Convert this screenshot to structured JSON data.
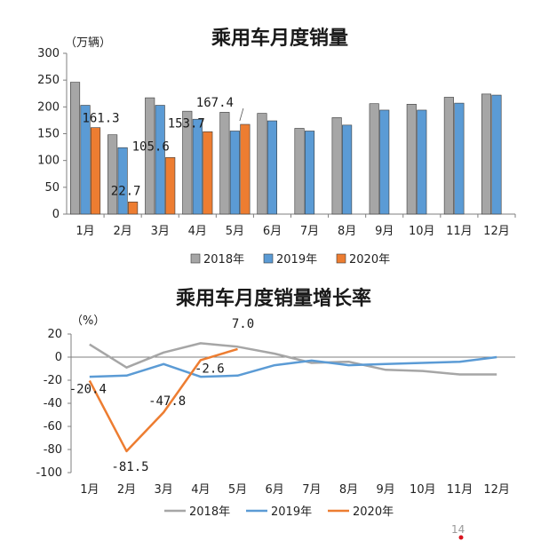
{
  "page_number": "14",
  "chart_data": [
    {
      "type": "bar",
      "title": "乘用车月度销量",
      "ylabel": "（万辆）",
      "xlabel": "",
      "ylim": [
        0,
        300
      ],
      "yticks": [
        "0",
        "50",
        "100",
        "150",
        "200",
        "250",
        "300"
      ],
      "categories": [
        "1月",
        "2月",
        "3月",
        "4月",
        "5月",
        "6月",
        "7月",
        "8月",
        "9月",
        "10月",
        "11月",
        "12月"
      ],
      "series": [
        {
          "name": "2018年",
          "color": "#a6a6a6",
          "values": [
            246,
            148,
            217,
            192,
            190,
            188,
            160,
            180,
            206,
            205,
            218,
            224
          ]
        },
        {
          "name": "2019年",
          "color": "#5b9bd5",
          "values": [
            203,
            124,
            203,
            177,
            155,
            174,
            155,
            166,
            194,
            194,
            207,
            222
          ]
        },
        {
          "name": "2020年",
          "color": "#ed7d31",
          "values": [
            161.3,
            22.7,
            105.6,
            153.7,
            167.4,
            null,
            null,
            null,
            null,
            null,
            null,
            null
          ]
        }
      ],
      "data_labels": [
        "161.3",
        "22.7",
        "105.6",
        "153.7",
        "167.4"
      ],
      "legend_position": "bottom"
    },
    {
      "type": "line",
      "title": "乘用车月度销量增长率",
      "ylabel": "（%）",
      "xlabel": "",
      "ylim": [
        -100,
        20
      ],
      "yticks": [
        "20",
        "0",
        "-20",
        "-40",
        "-60",
        "-80",
        "-100"
      ],
      "categories": [
        "1月",
        "2月",
        "3月",
        "4月",
        "5月",
        "6月",
        "7月",
        "8月",
        "9月",
        "10月",
        "11月",
        "12月"
      ],
      "series": [
        {
          "name": "2018年",
          "color": "#a6a6a6",
          "values": [
            11,
            -9,
            4,
            12,
            9,
            3,
            -5,
            -4,
            -11,
            -12,
            -15,
            -15
          ]
        },
        {
          "name": "2019年",
          "color": "#5b9bd5",
          "values": [
            -17,
            -16,
            -6,
            -17,
            -16,
            -7,
            -3,
            -7,
            -6,
            -5,
            -4,
            0
          ]
        },
        {
          "name": "2020年",
          "color": "#ed7d31",
          "values": [
            -20.4,
            -81.5,
            -47.8,
            -2.6,
            7.0,
            null,
            null,
            null,
            null,
            null,
            null,
            null
          ]
        }
      ],
      "data_labels": [
        "-20.4",
        "-81.5",
        "-47.8",
        "-2.6",
        "7.0"
      ],
      "legend_position": "bottom"
    }
  ]
}
